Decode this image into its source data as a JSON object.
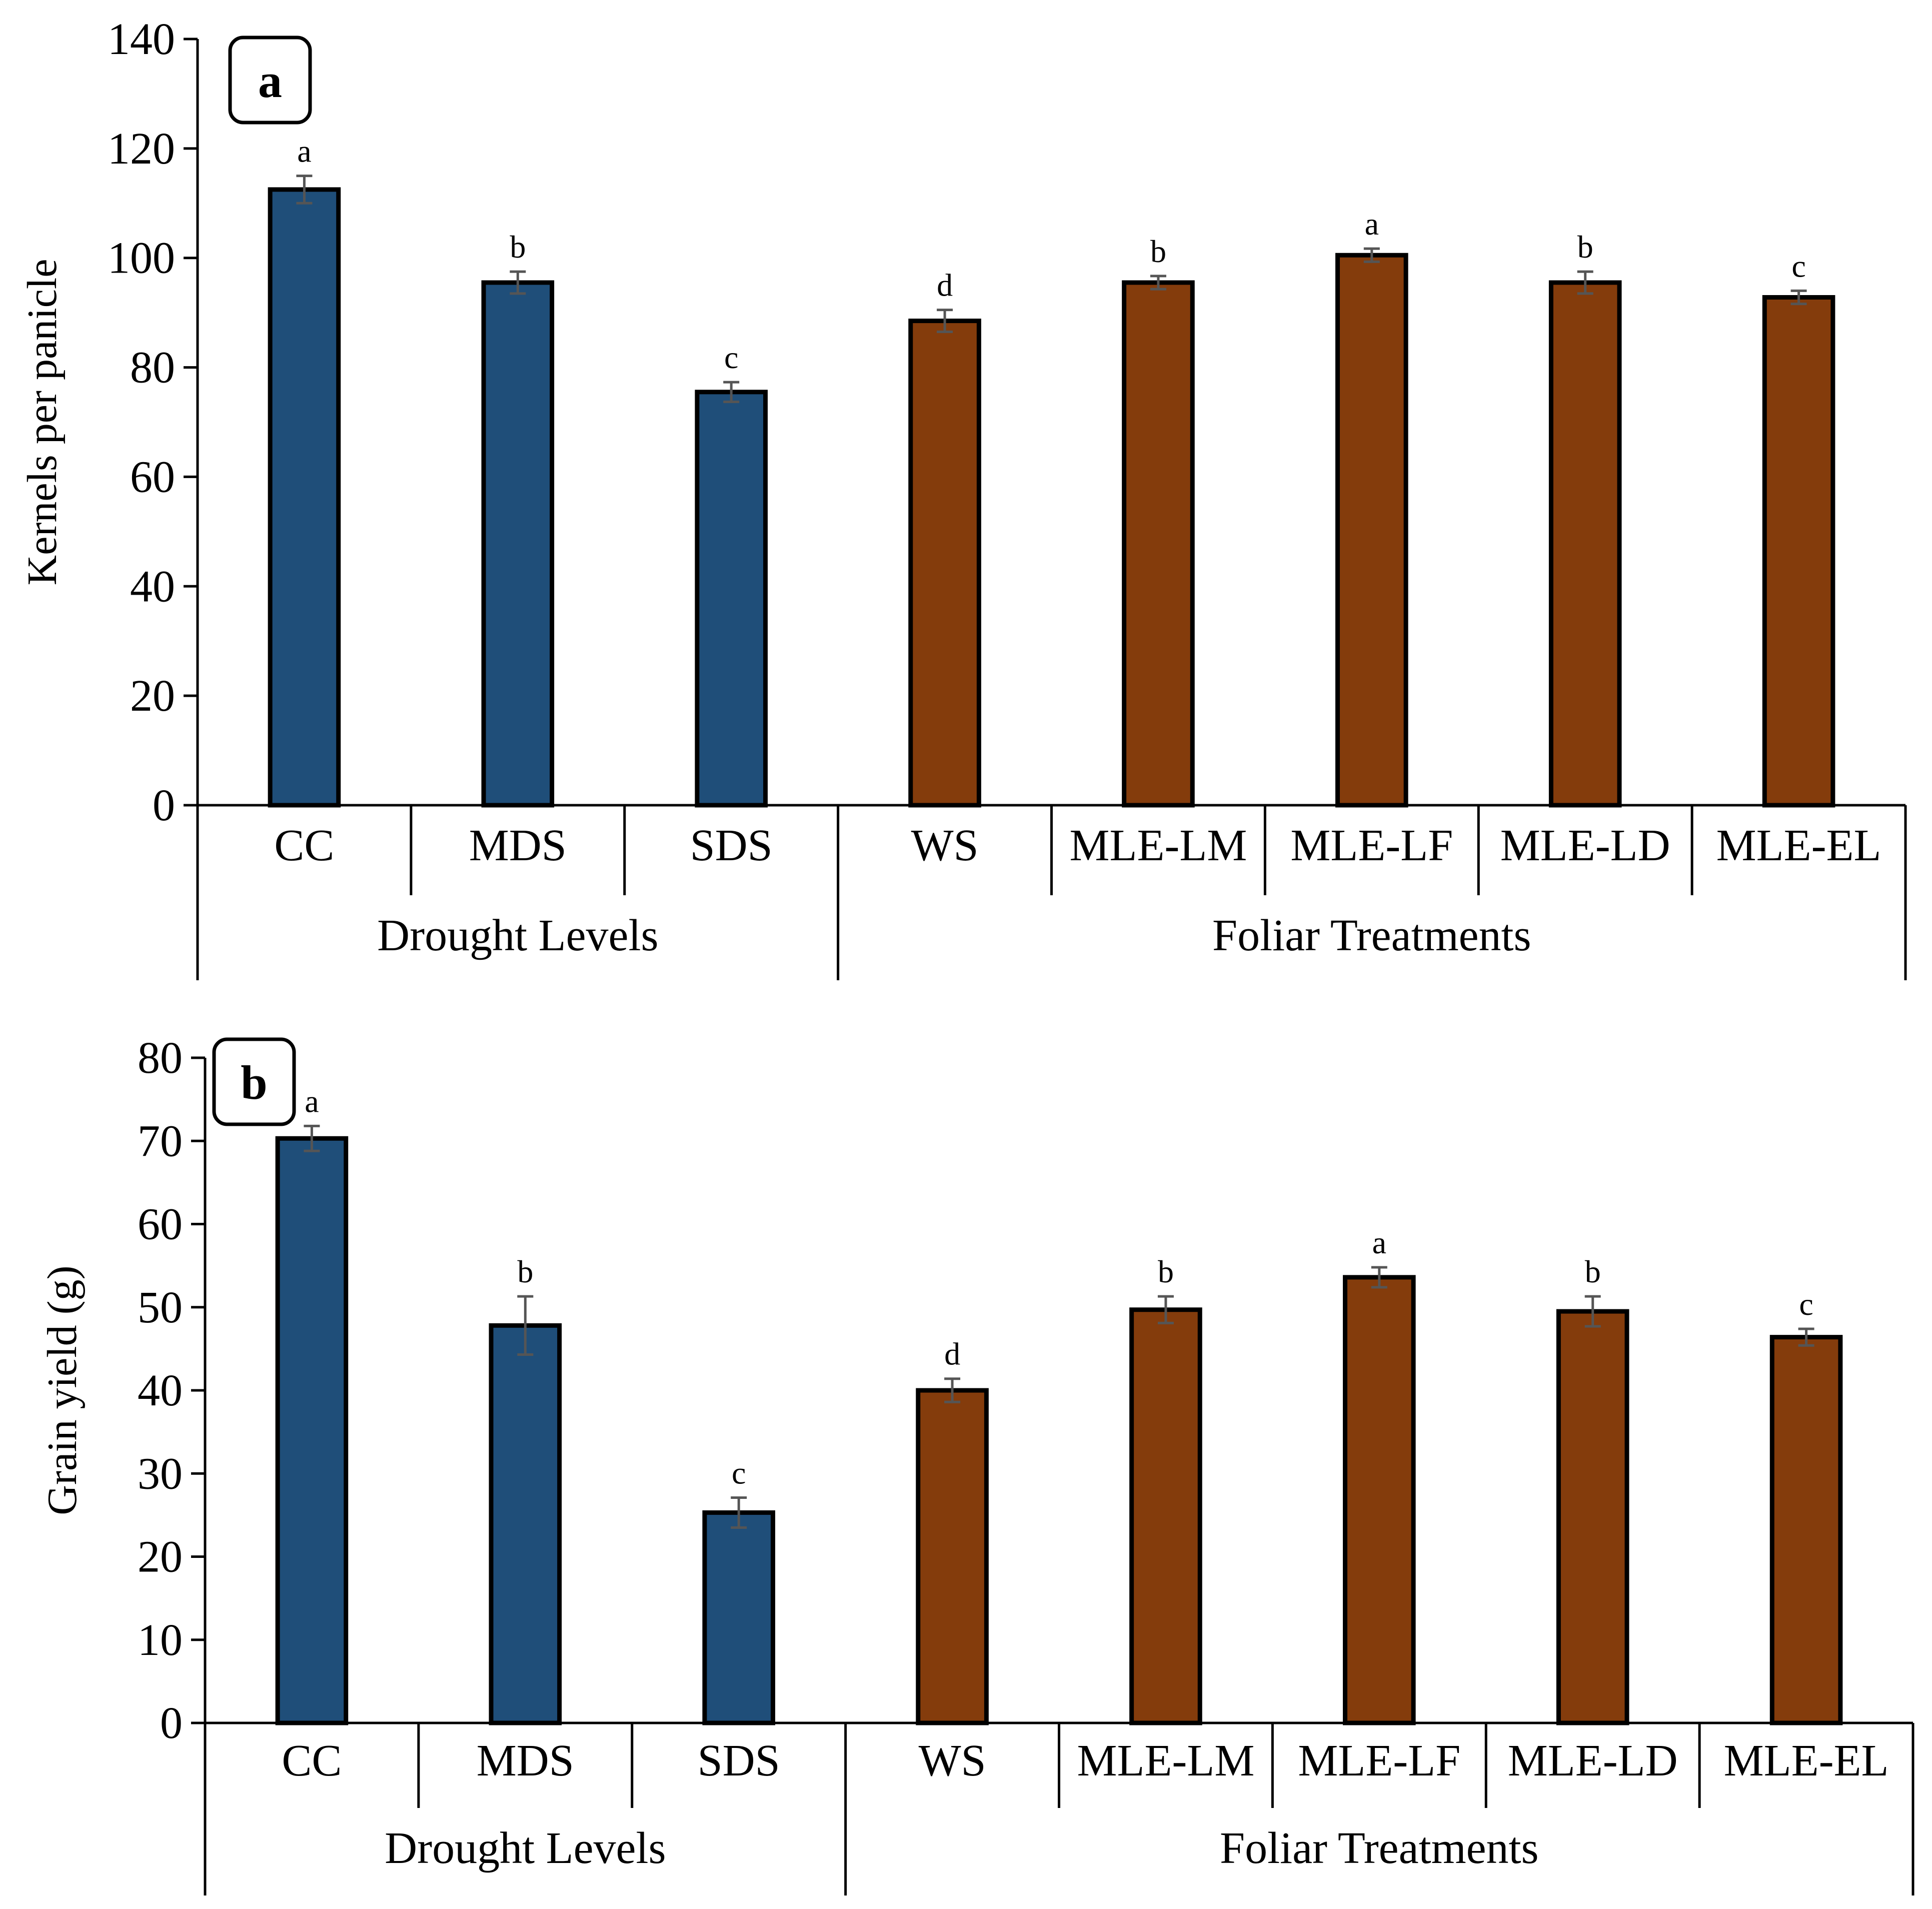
{
  "chart_data": [
    {
      "panel": "a",
      "type": "bar",
      "ylabel": "Kernels per panicle",
      "ylim": [
        0,
        140
      ],
      "yticks": [
        0,
        20,
        40,
        60,
        80,
        100,
        120,
        140
      ],
      "categories": [
        "CC",
        "MDS",
        "SDS",
        "WS",
        "MLE-LM",
        "MLE-LF",
        "MLE-LD",
        "MLE-EL"
      ],
      "values": [
        112.5,
        95.5,
        75.5,
        88.5,
        95.5,
        100.5,
        95.5,
        92.8
      ],
      "errors": [
        2.5,
        2.0,
        1.8,
        2.0,
        1.2,
        1.2,
        2.0,
        1.2
      ],
      "significance": [
        "a",
        "b",
        "c",
        "d",
        "b",
        "a",
        "b",
        "c"
      ],
      "group_index": [
        0,
        0,
        0,
        1,
        1,
        1,
        1,
        1
      ],
      "groups": [
        "Drought Levels",
        "Foliar Treatments"
      ],
      "colors": [
        "#1f4e79",
        "#843c0c"
      ]
    },
    {
      "panel": "b",
      "type": "bar",
      "ylabel": "Grain yield (g)",
      "ylim": [
        0,
        80
      ],
      "yticks": [
        0,
        10,
        20,
        30,
        40,
        50,
        60,
        70,
        80
      ],
      "categories": [
        "CC",
        "MDS",
        "SDS",
        "WS",
        "MLE-LM",
        "MLE-LF",
        "MLE-LD",
        "MLE-EL"
      ],
      "values": [
        70.3,
        47.8,
        25.3,
        40.0,
        49.7,
        53.6,
        49.5,
        46.4
      ],
      "errors": [
        1.5,
        3.5,
        1.8,
        1.4,
        1.6,
        1.2,
        1.8,
        1.0
      ],
      "significance": [
        "a",
        "b",
        "c",
        "d",
        "b",
        "a",
        "b",
        "c"
      ],
      "group_index": [
        0,
        0,
        0,
        1,
        1,
        1,
        1,
        1
      ],
      "groups": [
        "Drought Levels",
        "Foliar Treatments"
      ],
      "colors": [
        "#1f4e79",
        "#843c0c"
      ]
    }
  ]
}
